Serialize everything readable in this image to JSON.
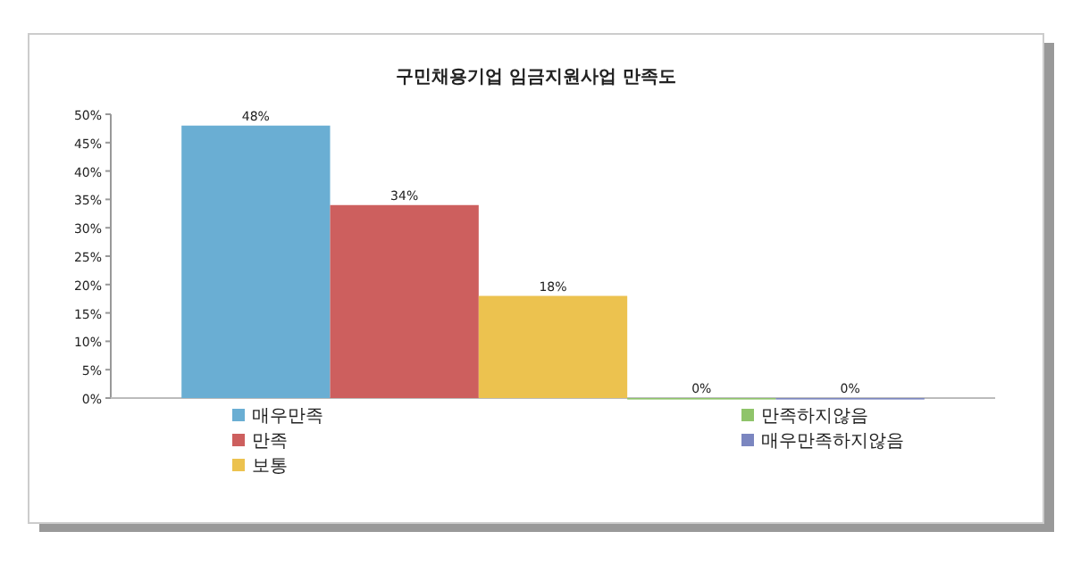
{
  "chart_data": {
    "type": "bar",
    "title": "구민채용기업 임금지원사업 만족도",
    "categories": [
      null
    ],
    "series": [
      {
        "name": "매우만족",
        "color": "#6aaed3",
        "values": [
          48
        ],
        "value_labels": [
          "48%"
        ]
      },
      {
        "name": "만족",
        "color": "#cd5f5e",
        "values": [
          34
        ],
        "value_labels": [
          "34%"
        ]
      },
      {
        "name": "보통",
        "color": "#ecc24f",
        "values": [
          18
        ],
        "value_labels": [
          "18%"
        ]
      },
      {
        "name": "만족하지않음",
        "color": "#8fc46a",
        "values": [
          0
        ],
        "value_labels": [
          "0%"
        ]
      },
      {
        "name": "매우만족하지않음",
        "color": "#7b86c0",
        "values": [
          0
        ],
        "value_labels": [
          "0%"
        ]
      }
    ],
    "ylim": [
      0,
      50
    ],
    "yticks": [
      {
        "value": 0,
        "label": "0%"
      },
      {
        "value": 5,
        "label": "5%"
      },
      {
        "value": 10,
        "label": "10%"
      },
      {
        "value": 15,
        "label": "15%"
      },
      {
        "value": 20,
        "label": "20%"
      },
      {
        "value": 25,
        "label": "25%"
      },
      {
        "value": 30,
        "label": "30%"
      },
      {
        "value": 35,
        "label": "35%"
      },
      {
        "value": 40,
        "label": "40%"
      },
      {
        "value": 45,
        "label": "45%"
      },
      {
        "value": 50,
        "label": "50%"
      }
    ],
    "grid": false,
    "legend": "bottom"
  }
}
